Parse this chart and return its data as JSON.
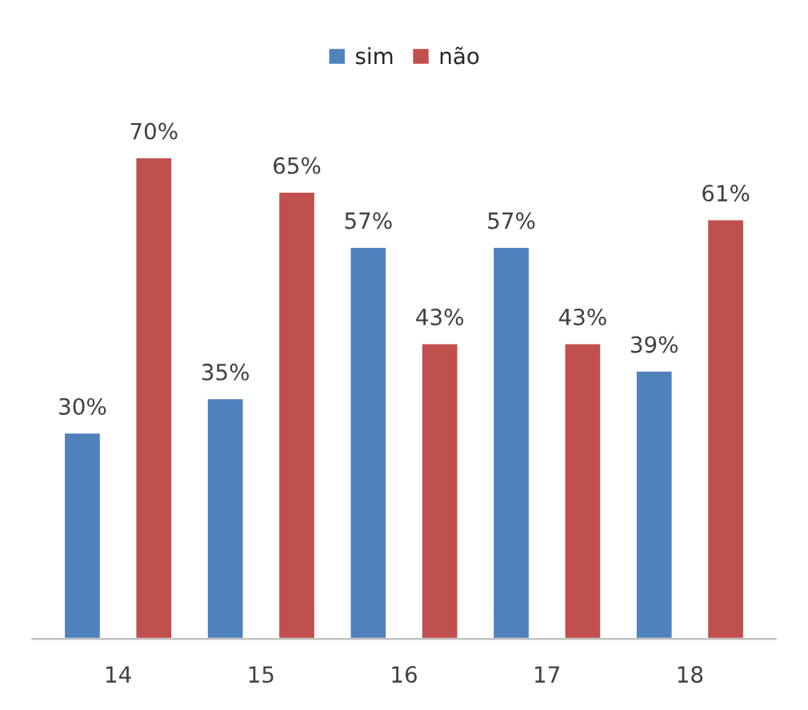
{
  "chart_data": {
    "type": "bar",
    "categories": [
      "14",
      "15",
      "16",
      "17",
      "18"
    ],
    "series": [
      {
        "name": "sim",
        "color": "#4f81bd",
        "values": [
          30,
          35,
          57,
          57,
          39
        ],
        "value_labels": [
          "30%",
          "35%",
          "57%",
          "57%",
          "39%"
        ]
      },
      {
        "name": "não",
        "color": "#c0504d",
        "values": [
          70,
          65,
          43,
          43,
          61
        ],
        "value_labels": [
          "70%",
          "65%",
          "43%",
          "43%",
          "61%"
        ]
      }
    ],
    "legend": "top",
    "grid": false
  }
}
